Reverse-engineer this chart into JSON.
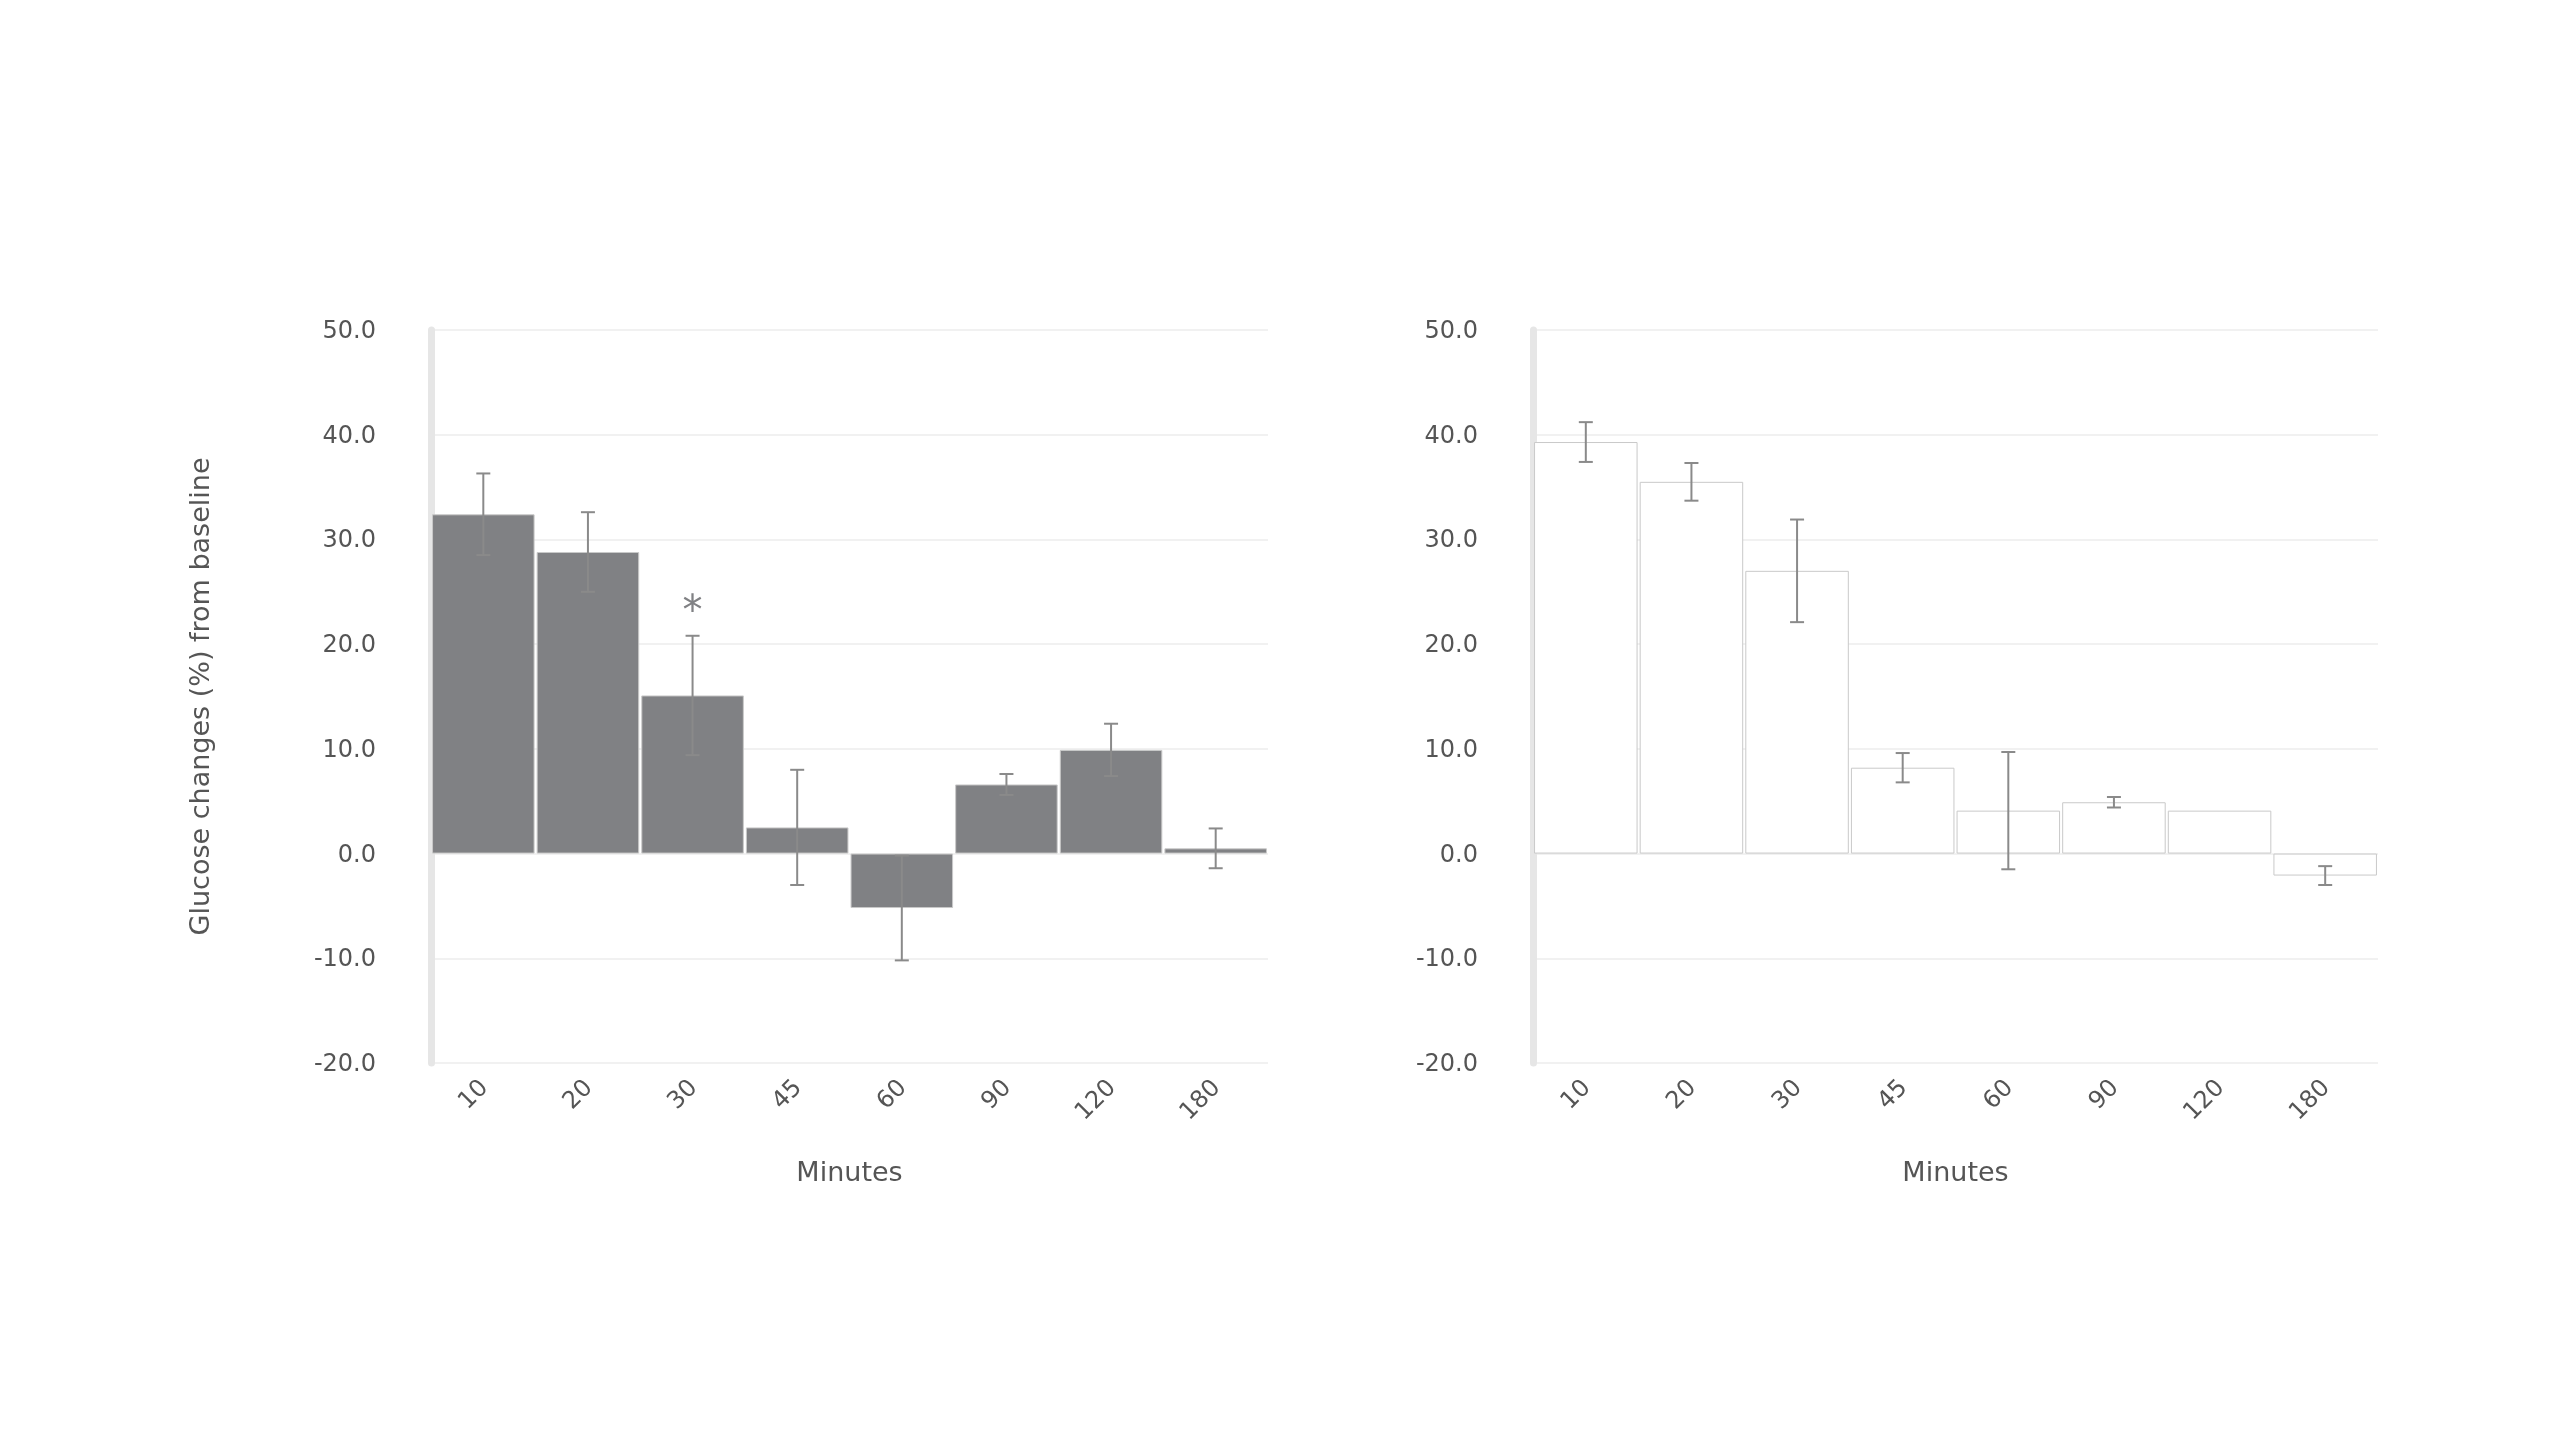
{
  "chart_data": [
    {
      "type": "bar",
      "ylabel": "Glucose changes (%) from baseline",
      "xlabel": "Minutes",
      "categories": [
        "10",
        "20",
        "30",
        "45",
        "60",
        "90",
        "120",
        "180"
      ],
      "values": [
        32.4,
        28.8,
        15.1,
        2.5,
        -5.2,
        6.6,
        9.9,
        0.5
      ],
      "errors": [
        3.9,
        3.8,
        5.7,
        5.5,
        5.0,
        1.0,
        2.5,
        1.9
      ],
      "color": "#808184",
      "ylim": [
        -20,
        50
      ],
      "yticks": [
        {
          "value": -20,
          "label": "-20.0"
        },
        {
          "value": -10,
          "label": "-10.0"
        },
        {
          "value": 0,
          "label": "0.0"
        },
        {
          "value": 10,
          "label": "10.0"
        },
        {
          "value": 20,
          "label": "20.0"
        },
        {
          "value": 30,
          "label": "30.0"
        },
        {
          "value": 40,
          "label": "40.0"
        },
        {
          "value": 50,
          "label": "50.0"
        }
      ],
      "grid": "y",
      "annotations": [
        {
          "text": "*",
          "x": "30",
          "y": 20.8
        }
      ]
    },
    {
      "type": "bar",
      "xlabel": "Minutes",
      "categories": [
        "10",
        "20",
        "30",
        "45",
        "60",
        "90",
        "120",
        "180"
      ],
      "values": [
        39.3,
        35.5,
        27.0,
        8.2,
        4.1,
        4.9,
        4.1,
        -2.1
      ],
      "errors": [
        1.9,
        1.8,
        4.9,
        1.4,
        5.6,
        0.5,
        null,
        0.9
      ],
      "color": "#ffffff",
      "ylim": [
        -20,
        50
      ],
      "yticks": [
        {
          "value": -20,
          "label": "-20.0"
        },
        {
          "value": -10,
          "label": "-10.0"
        },
        {
          "value": 0,
          "label": "0.0"
        },
        {
          "value": 10,
          "label": "10.0"
        },
        {
          "value": 20,
          "label": "20.0"
        },
        {
          "value": 30,
          "label": "30.0"
        },
        {
          "value": 40,
          "label": "40.0"
        },
        {
          "value": 50,
          "label": "50.0"
        }
      ],
      "grid": "y"
    }
  ]
}
